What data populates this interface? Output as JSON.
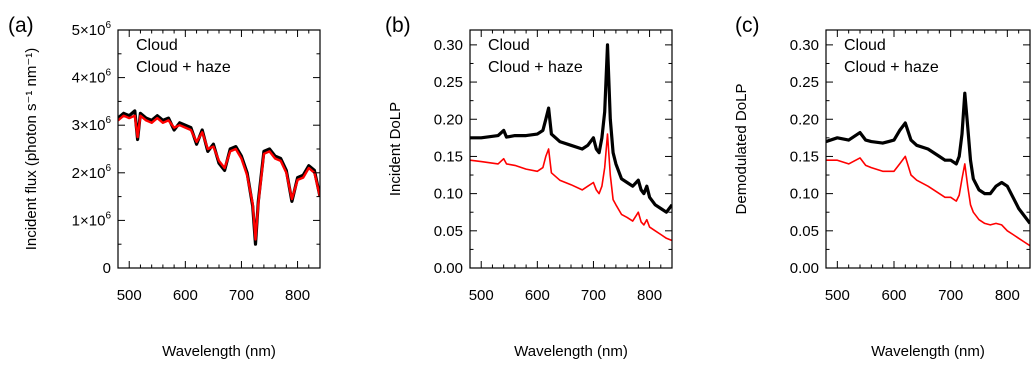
{
  "chart_data": [
    {
      "panel_label": "(a)",
      "type": "line",
      "xlabel": "Wavelength (nm)",
      "ylabel": "Incident flux (photon s⁻¹ nm⁻¹)",
      "xlim": [
        480,
        840
      ],
      "ylim": [
        0,
        5000000
      ],
      "x_ticks": [
        500,
        600,
        700,
        800
      ],
      "y_ticks": [
        {
          "value": 0,
          "mantissa": "0",
          "exponent": ""
        },
        {
          "value": 1000000,
          "mantissa": "1×10",
          "exponent": "6"
        },
        {
          "value": 2000000,
          "mantissa": "2×10",
          "exponent": "6"
        },
        {
          "value": 3000000,
          "mantissa": "3×10",
          "exponent": "6"
        },
        {
          "value": 4000000,
          "mantissa": "4×10",
          "exponent": "6"
        },
        {
          "value": 5000000,
          "mantissa": "5×10",
          "exponent": "6"
        }
      ],
      "legend": [
        {
          "label": "Cloud",
          "color": "#000000"
        },
        {
          "label": "Cloud + haze",
          "color": "#ff0000"
        }
      ],
      "series": [
        {
          "name": "Cloud",
          "color": "#000000",
          "x": [
            480,
            490,
            500,
            510,
            515,
            520,
            530,
            540,
            550,
            560,
            570,
            580,
            590,
            600,
            610,
            620,
            630,
            640,
            650,
            660,
            670,
            680,
            690,
            700,
            710,
            720,
            725,
            730,
            740,
            750,
            760,
            770,
            780,
            790,
            800,
            810,
            820,
            830,
            840
          ],
          "y": [
            3150000,
            3250000,
            3200000,
            3300000,
            2700000,
            3250000,
            3150000,
            3100000,
            3200000,
            3100000,
            3150000,
            2900000,
            3050000,
            3000000,
            2950000,
            2600000,
            2900000,
            2450000,
            2600000,
            2200000,
            2050000,
            2500000,
            2550000,
            2350000,
            2000000,
            1300000,
            500000,
            1400000,
            2450000,
            2500000,
            2350000,
            2300000,
            2050000,
            1400000,
            1900000,
            1950000,
            2150000,
            2050000,
            1500000
          ]
        },
        {
          "name": "Cloud + haze",
          "color": "#ff0000",
          "x": [
            480,
            490,
            500,
            510,
            515,
            520,
            530,
            540,
            550,
            560,
            570,
            580,
            590,
            600,
            610,
            620,
            630,
            640,
            650,
            660,
            670,
            680,
            690,
            700,
            710,
            720,
            725,
            730,
            740,
            750,
            760,
            770,
            780,
            790,
            800,
            810,
            820,
            830,
            840
          ],
          "y": [
            3100000,
            3200000,
            3150000,
            3200000,
            2750000,
            3200000,
            3100000,
            3050000,
            3150000,
            3050000,
            3100000,
            2950000,
            3000000,
            2950000,
            2900000,
            2650000,
            2850000,
            2500000,
            2550000,
            2250000,
            2100000,
            2450000,
            2500000,
            2300000,
            1950000,
            1350000,
            600000,
            1350000,
            2400000,
            2450000,
            2300000,
            2250000,
            2000000,
            1450000,
            1850000,
            1900000,
            2100000,
            2000000,
            1500000
          ]
        }
      ]
    },
    {
      "panel_label": "(b)",
      "type": "line",
      "xlabel": "Wavelength (nm)",
      "ylabel": "Incident DoLP",
      "xlim": [
        480,
        840
      ],
      "ylim": [
        0,
        0.32
      ],
      "x_ticks": [
        500,
        600,
        700,
        800
      ],
      "y_ticks": [
        {
          "value": 0.0,
          "label": "0.00"
        },
        {
          "value": 0.05,
          "label": "0.05"
        },
        {
          "value": 0.1,
          "label": "0.10"
        },
        {
          "value": 0.15,
          "label": "0.15"
        },
        {
          "value": 0.2,
          "label": "0.20"
        },
        {
          "value": 0.25,
          "label": "0.25"
        },
        {
          "value": 0.3,
          "label": "0.30"
        }
      ],
      "legend": [
        {
          "label": "Cloud",
          "color": "#000000"
        },
        {
          "label": "Cloud + haze",
          "color": "#ff0000"
        }
      ],
      "series": [
        {
          "name": "Cloud",
          "color": "#000000",
          "x": [
            480,
            500,
            530,
            540,
            545,
            560,
            580,
            600,
            610,
            615,
            620,
            625,
            640,
            660,
            680,
            690,
            700,
            705,
            710,
            715,
            720,
            725,
            730,
            735,
            740,
            750,
            760,
            770,
            780,
            785,
            790,
            795,
            800,
            810,
            820,
            830,
            840
          ],
          "y": [
            0.175,
            0.175,
            0.178,
            0.185,
            0.176,
            0.178,
            0.178,
            0.18,
            0.185,
            0.2,
            0.215,
            0.18,
            0.17,
            0.165,
            0.16,
            0.165,
            0.175,
            0.16,
            0.155,
            0.175,
            0.21,
            0.3,
            0.2,
            0.155,
            0.14,
            0.12,
            0.115,
            0.11,
            0.118,
            0.105,
            0.1,
            0.11,
            0.095,
            0.085,
            0.08,
            0.075,
            0.085
          ]
        },
        {
          "name": "Cloud + haze",
          "color": "#ff0000",
          "x": [
            480,
            500,
            530,
            540,
            545,
            560,
            580,
            600,
            610,
            615,
            620,
            625,
            640,
            660,
            680,
            690,
            700,
            705,
            710,
            715,
            720,
            725,
            730,
            735,
            740,
            750,
            760,
            770,
            780,
            785,
            790,
            795,
            800,
            810,
            820,
            830,
            840
          ],
          "y": [
            0.145,
            0.143,
            0.14,
            0.147,
            0.14,
            0.138,
            0.133,
            0.13,
            0.135,
            0.15,
            0.16,
            0.128,
            0.118,
            0.112,
            0.105,
            0.11,
            0.115,
            0.105,
            0.1,
            0.11,
            0.135,
            0.18,
            0.125,
            0.092,
            0.085,
            0.072,
            0.068,
            0.063,
            0.075,
            0.062,
            0.058,
            0.065,
            0.055,
            0.05,
            0.045,
            0.04,
            0.037
          ]
        }
      ]
    },
    {
      "panel_label": "(c)",
      "type": "line",
      "xlabel": "Wavelength (nm)",
      "ylabel": "Demodulated DoLP",
      "xlim": [
        480,
        840
      ],
      "ylim": [
        0,
        0.32
      ],
      "x_ticks": [
        500,
        600,
        700,
        800
      ],
      "y_ticks": [
        {
          "value": 0.0,
          "label": "0.00"
        },
        {
          "value": 0.05,
          "label": "0.05"
        },
        {
          "value": 0.1,
          "label": "0.10"
        },
        {
          "value": 0.15,
          "label": "0.15"
        },
        {
          "value": 0.2,
          "label": "0.20"
        },
        {
          "value": 0.25,
          "label": "0.25"
        },
        {
          "value": 0.3,
          "label": "0.30"
        }
      ],
      "legend": [
        {
          "label": "Cloud",
          "color": "#000000"
        },
        {
          "label": "Cloud + haze",
          "color": "#ff0000"
        }
      ],
      "series": [
        {
          "name": "Cloud",
          "color": "#000000",
          "x": [
            480,
            500,
            520,
            540,
            550,
            560,
            580,
            600,
            610,
            620,
            630,
            640,
            660,
            680,
            690,
            700,
            710,
            715,
            720,
            725,
            730,
            735,
            740,
            750,
            760,
            770,
            780,
            790,
            800,
            810,
            820,
            830,
            840
          ],
          "y": [
            0.17,
            0.175,
            0.172,
            0.182,
            0.172,
            0.17,
            0.168,
            0.172,
            0.185,
            0.195,
            0.172,
            0.165,
            0.16,
            0.15,
            0.145,
            0.145,
            0.14,
            0.15,
            0.18,
            0.235,
            0.19,
            0.145,
            0.12,
            0.105,
            0.1,
            0.1,
            0.11,
            0.115,
            0.11,
            0.095,
            0.08,
            0.07,
            0.06
          ]
        },
        {
          "name": "Cloud + haze",
          "color": "#ff0000",
          "x": [
            480,
            500,
            520,
            540,
            550,
            560,
            580,
            600,
            610,
            620,
            630,
            640,
            660,
            680,
            690,
            700,
            710,
            715,
            720,
            725,
            730,
            735,
            740,
            750,
            760,
            770,
            780,
            790,
            800,
            810,
            820,
            830,
            840
          ],
          "y": [
            0.145,
            0.145,
            0.14,
            0.148,
            0.138,
            0.135,
            0.13,
            0.13,
            0.14,
            0.15,
            0.125,
            0.118,
            0.11,
            0.1,
            0.095,
            0.095,
            0.09,
            0.098,
            0.12,
            0.14,
            0.11,
            0.085,
            0.075,
            0.065,
            0.06,
            0.058,
            0.06,
            0.058,
            0.05,
            0.045,
            0.04,
            0.035,
            0.03
          ]
        }
      ]
    }
  ]
}
